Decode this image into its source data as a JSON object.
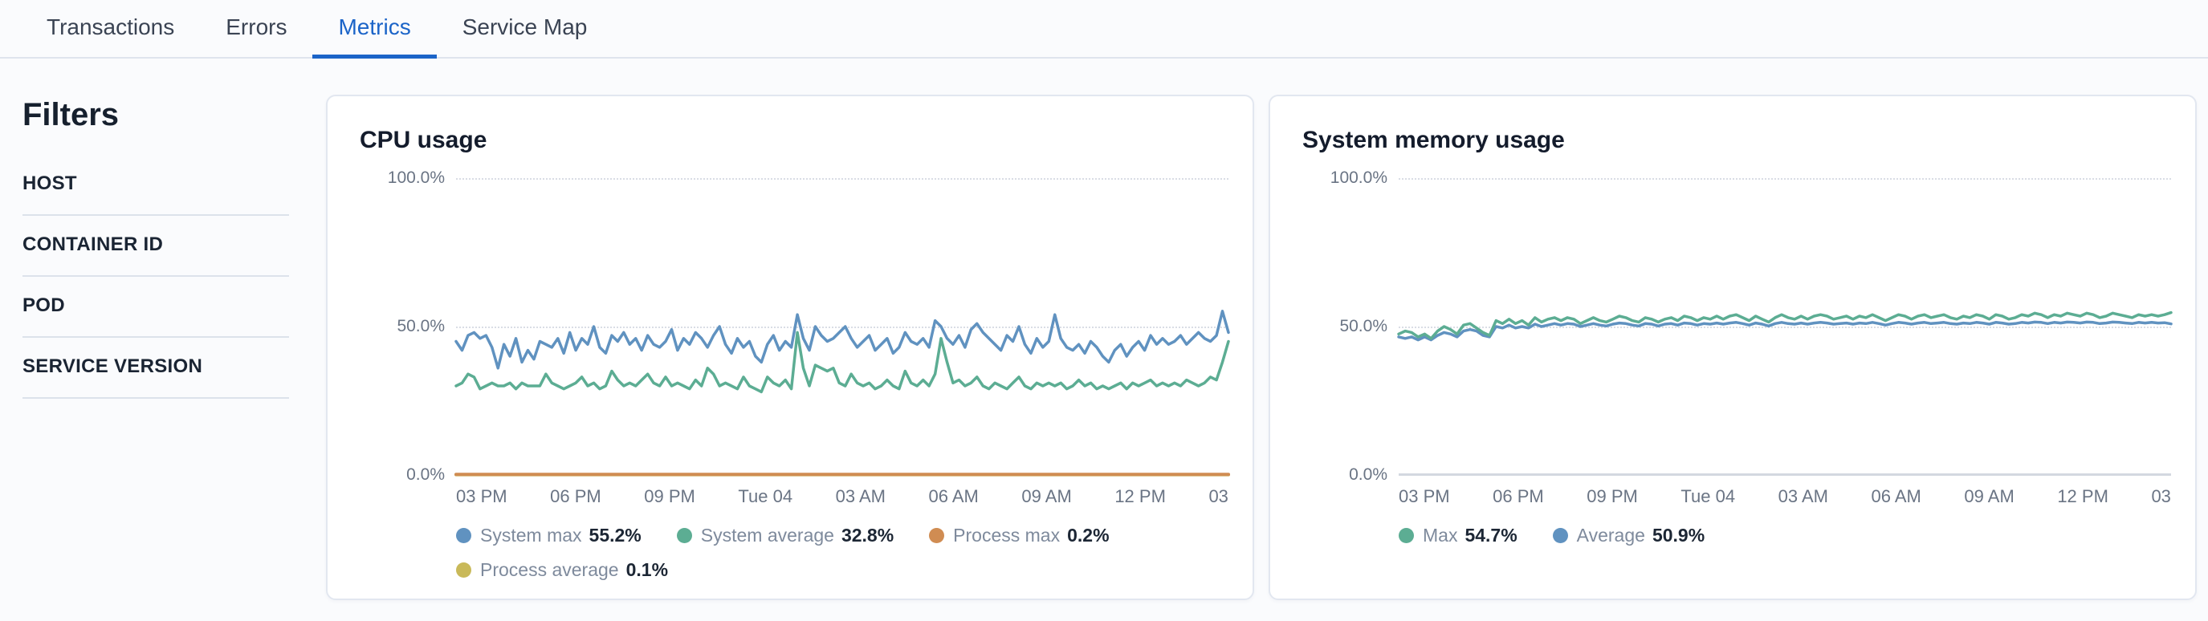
{
  "tabs": {
    "items": [
      {
        "label": "Transactions",
        "active": false
      },
      {
        "label": "Errors",
        "active": false
      },
      {
        "label": "Metrics",
        "active": true
      },
      {
        "label": "Service Map",
        "active": false
      }
    ]
  },
  "sidebar": {
    "title": "Filters",
    "filters": [
      {
        "label": "HOST"
      },
      {
        "label": "CONTAINER ID"
      },
      {
        "label": "POD"
      },
      {
        "label": "SERVICE VERSION"
      }
    ]
  },
  "colors": {
    "active_tab": "#1b64c8",
    "series_blue": "#6092C0",
    "series_green": "#5CAD93",
    "series_orange": "#D08C52",
    "series_yellow": "#C9B959",
    "grid": "#d9dde5",
    "axis_text": "#6a7484"
  },
  "chart_data": [
    {
      "type": "line",
      "title": "CPU usage",
      "ylabel": "",
      "xlabel": "",
      "ylim": [
        0,
        100
      ],
      "yticks": [
        "100.0%",
        "50.0%",
        "0.0%"
      ],
      "xticks": [
        "03 PM",
        "06 PM",
        "09 PM",
        "Tue 04",
        "03 AM",
        "06 AM",
        "09 AM",
        "12 PM",
        "03"
      ],
      "grid": "dotted horizontal at 0%, 50%, 100%",
      "legend_position": "bottom",
      "series": [
        {
          "name": "System max",
          "display_value": "55.2%",
          "color": "#6092C0",
          "width": 3.5,
          "values": [
            45,
            42,
            47,
            48,
            46,
            47,
            43,
            36,
            44,
            40,
            46,
            38,
            42,
            39,
            45,
            44,
            43,
            46,
            41,
            48,
            42,
            46,
            44,
            50,
            43,
            41,
            47,
            45,
            48,
            44,
            46,
            42,
            47,
            44,
            43,
            45,
            49,
            42,
            46,
            44,
            48,
            46,
            43,
            47,
            50,
            44,
            41,
            46,
            43,
            45,
            40,
            38,
            44,
            47,
            42,
            45,
            43,
            54,
            46,
            42,
            50,
            47,
            45,
            46,
            48,
            50,
            46,
            43,
            45,
            47,
            42,
            44,
            46,
            41,
            43,
            48,
            45,
            44,
            46,
            43,
            52,
            50,
            46,
            44,
            47,
            43,
            49,
            51,
            48,
            46,
            44,
            42,
            47,
            45,
            50,
            44,
            41,
            46,
            43,
            45,
            54,
            46,
            43,
            42,
            44,
            41,
            45,
            43,
            40,
            38,
            42,
            44,
            40,
            43,
            45,
            42,
            47,
            44,
            46,
            44,
            45,
            47,
            44,
            46,
            48,
            46,
            45,
            47,
            55.2,
            48
          ]
        },
        {
          "name": "System average",
          "display_value": "32.8%",
          "color": "#5CAD93",
          "width": 3.5,
          "values": [
            30,
            31,
            34,
            33,
            29,
            30,
            31,
            30,
            30,
            31,
            29,
            31,
            30,
            30,
            30,
            34,
            31,
            30,
            29,
            30,
            31,
            33,
            30,
            31,
            29,
            30,
            35,
            32,
            30,
            31,
            30,
            32,
            34,
            31,
            30,
            33,
            30,
            31,
            30,
            29,
            32,
            30,
            36,
            34,
            30,
            31,
            30,
            29,
            33,
            30,
            29,
            28,
            33,
            31,
            30,
            32,
            29,
            48,
            36,
            30,
            37,
            36,
            35,
            36,
            31,
            30,
            34,
            31,
            30,
            31,
            29,
            30,
            32,
            30,
            29,
            35,
            31,
            30,
            32,
            30,
            34,
            46,
            38,
            31,
            32,
            30,
            31,
            33,
            30,
            29,
            31,
            30,
            29,
            31,
            33,
            30,
            29,
            31,
            30,
            31,
            30,
            31,
            29,
            30,
            32,
            30,
            31,
            29,
            30,
            29,
            30,
            31,
            29,
            31,
            30,
            31,
            32,
            30,
            31,
            30,
            31,
            30,
            32,
            31,
            30,
            31,
            33,
            32,
            38,
            45
          ]
        },
        {
          "name": "Process max",
          "display_value": "0.2%",
          "color": "#D08C52",
          "width": 4,
          "values": [
            0.2,
            0.2
          ]
        },
        {
          "name": "Process average",
          "display_value": "0.1%",
          "color": "#C9B959",
          "width": 4,
          "values": [
            0.1,
            0.1
          ]
        }
      ]
    },
    {
      "type": "line",
      "title": "System memory usage",
      "ylabel": "",
      "xlabel": "",
      "ylim": [
        0,
        100
      ],
      "yticks": [
        "100.0%",
        "50.0%",
        "0.0%"
      ],
      "xticks": [
        "03 PM",
        "06 PM",
        "09 PM",
        "Tue 04",
        "03 AM",
        "06 AM",
        "09 AM",
        "12 PM",
        "03"
      ],
      "grid": "dotted horizontal at 0%, 50%, 100%",
      "legend_position": "bottom",
      "series": [
        {
          "name": "Max",
          "display_value": "54.7%",
          "color": "#5CAD93",
          "width": 3.5,
          "values": [
            47.5,
            48.5,
            48,
            46.5,
            47.5,
            46,
            48.5,
            50,
            49,
            47.5,
            50.5,
            51,
            49.5,
            48,
            47,
            52,
            51,
            52.5,
            51,
            52,
            50.5,
            53,
            51.5,
            52.5,
            53,
            52,
            53,
            52.5,
            51,
            52,
            53,
            52,
            51.5,
            52.5,
            53.5,
            53,
            52,
            51.5,
            53,
            52.5,
            51.5,
            52.5,
            53,
            52,
            53.5,
            53,
            52,
            53,
            52.5,
            53.5,
            52.5,
            53.5,
            54,
            53,
            52,
            53.5,
            52.5,
            51.5,
            53,
            54,
            53,
            52.5,
            53.5,
            52.5,
            53.5,
            54,
            53.5,
            52.5,
            53,
            53.5,
            52.5,
            53.5,
            53,
            54,
            53,
            52,
            53,
            54,
            53.5,
            52.5,
            53.5,
            54,
            53,
            53.5,
            54,
            53,
            52.5,
            53.5,
            53,
            54,
            53.5,
            52.5,
            54,
            53.5,
            52.5,
            53,
            54,
            53.5,
            54.5,
            54,
            53,
            54,
            53.5,
            54.5,
            54,
            53.5,
            54.5,
            54,
            53,
            53.5,
            54.5,
            54,
            53.5,
            53,
            54,
            53.5,
            54,
            53.5,
            54,
            54.7
          ]
        },
        {
          "name": "Average",
          "display_value": "50.9%",
          "color": "#6092C0",
          "width": 3.5,
          "values": [
            46.5,
            46,
            46.5,
            45.5,
            46.5,
            45.5,
            47,
            48,
            47.5,
            46.5,
            48.5,
            49,
            48.5,
            47,
            46.5,
            50,
            49.5,
            50.5,
            49.5,
            50,
            49.5,
            50.8,
            50,
            50.5,
            51,
            50.5,
            51,
            50.8,
            50,
            50.5,
            51,
            50.5,
            50.2,
            50.8,
            51.2,
            51,
            50.5,
            50.2,
            51,
            50.8,
            50.2,
            50.8,
            51,
            50.5,
            51.2,
            51,
            50.5,
            51,
            50.8,
            51.2,
            50.8,
            51.2,
            51.4,
            51,
            50.5,
            51.2,
            50.8,
            50.2,
            51,
            51.4,
            51,
            50.8,
            51.2,
            50.8,
            51.2,
            51.4,
            51.2,
            50.8,
            51,
            51.2,
            50.8,
            51.2,
            51,
            51.4,
            51,
            50.5,
            51,
            51.4,
            51.2,
            50.8,
            51.2,
            51.4,
            51,
            51.2,
            51.4,
            51,
            50.8,
            51.2,
            51,
            51.4,
            51.2,
            50.8,
            51.4,
            51.2,
            50.8,
            51,
            51.4,
            51.2,
            51.5,
            51.4,
            51,
            51.4,
            51.2,
            51.5,
            51.4,
            51.2,
            51.5,
            51.4,
            51,
            51.2,
            51.5,
            51.4,
            51.2,
            51,
            51.4,
            51.2,
            51.4,
            51.2,
            51.3,
            50.9
          ]
        }
      ]
    }
  ]
}
